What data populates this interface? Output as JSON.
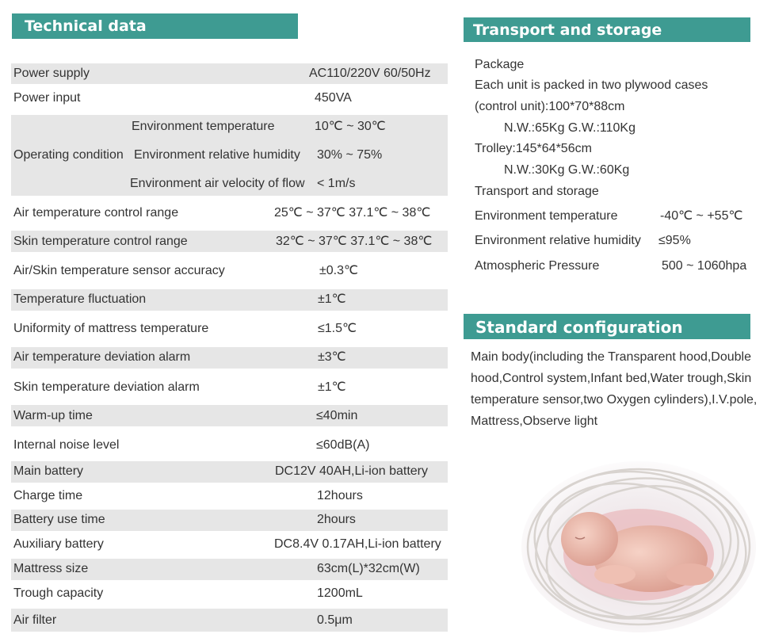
{
  "technical": {
    "title": "Technical data",
    "power_supply": {
      "label": "Power supply",
      "value": "AC110/220V  60/50Hz"
    },
    "power_input": {
      "label": "Power input",
      "value": "450VA"
    },
    "operating": {
      "label": "Operating condition",
      "env_temp": {
        "label": "Environment temperature",
        "value": "10℃ ~ 30℃"
      },
      "env_humidity": {
        "label": "Environment relative humidity",
        "value": "30% ~ 75%"
      },
      "air_velocity": {
        "label": "Environment air velocity of flow",
        "value": "< 1m/s"
      }
    },
    "rows": [
      {
        "label": "Air temperature control range",
        "value": "25℃ ~ 37℃  37.1℃ ~ 38℃"
      },
      {
        "label": "Skin temperature control range",
        "value": "32℃ ~ 37℃  37.1℃ ~ 38℃"
      },
      {
        "label": "Air/Skin temperature sensor accuracy",
        "value": "±0.3℃"
      },
      {
        "label": "Temperature fluctuation",
        "value": "±1℃"
      },
      {
        "label": "Uniformity of mattress temperature",
        "value": "≤1.5℃"
      },
      {
        "label": "Air temperature deviation alarm",
        "value": "±3℃"
      },
      {
        "label": "Skin temperature deviation alarm",
        "value": "±1℃"
      },
      {
        "label": "Warm-up time",
        "value": "≤40min"
      },
      {
        "label": "Internal noise level",
        "value": "≤60dB(A)"
      },
      {
        "label": "Main battery",
        "value": "DC12V 40AH,Li-ion battery"
      },
      {
        "label": "Charge time",
        "value": "12hours"
      },
      {
        "label": "Battery use time",
        "value": "2hours"
      },
      {
        "label": "Auxiliary battery",
        "value": "DC8.4V 0.17AH,Li-ion battery"
      },
      {
        "label": "Mattress size",
        "value": "63cm(L)*32cm(W)"
      },
      {
        "label": "Trough capacity",
        "value": "1200mL"
      },
      {
        "label": "Air filter",
        "value": "0.5μm"
      }
    ]
  },
  "transport": {
    "title": "Transport and storage",
    "package": "Package",
    "packed": "Each unit is packed in two plywood cases",
    "control_unit": "(control unit):100*70*88cm",
    "control_weight": "N.W.:65Kg   G.W.:110Kg",
    "trolley": "Trolley:145*64*56cm",
    "trolley_weight": "N.W.:30Kg   G.W.:60Kg",
    "transport_storage": "Transport and storage",
    "env_temp_label": "Environment temperature",
    "env_temp_value": "-40℃ ~ +55℃",
    "env_humidity_label": "Environment relative humidity",
    "env_humidity_value": "≤95%",
    "pressure_label": "Atmospheric Pressure",
    "pressure_value": "500 ~ 1060hpa"
  },
  "standard": {
    "title": "Standard configuration",
    "text": "Main body(including the Transparent hood,Double hood,Control system,Infant bed,Water trough,Skin temperature sensor,two Oxygen cylinders),I.V.pole, Mattress,Observe light"
  },
  "colors": {
    "header": "#3e9b92",
    "row_shade": "#e6e6e6",
    "text": "#333333"
  },
  "image": {
    "subject": "sleeping newborn in a nest of white fibers"
  }
}
